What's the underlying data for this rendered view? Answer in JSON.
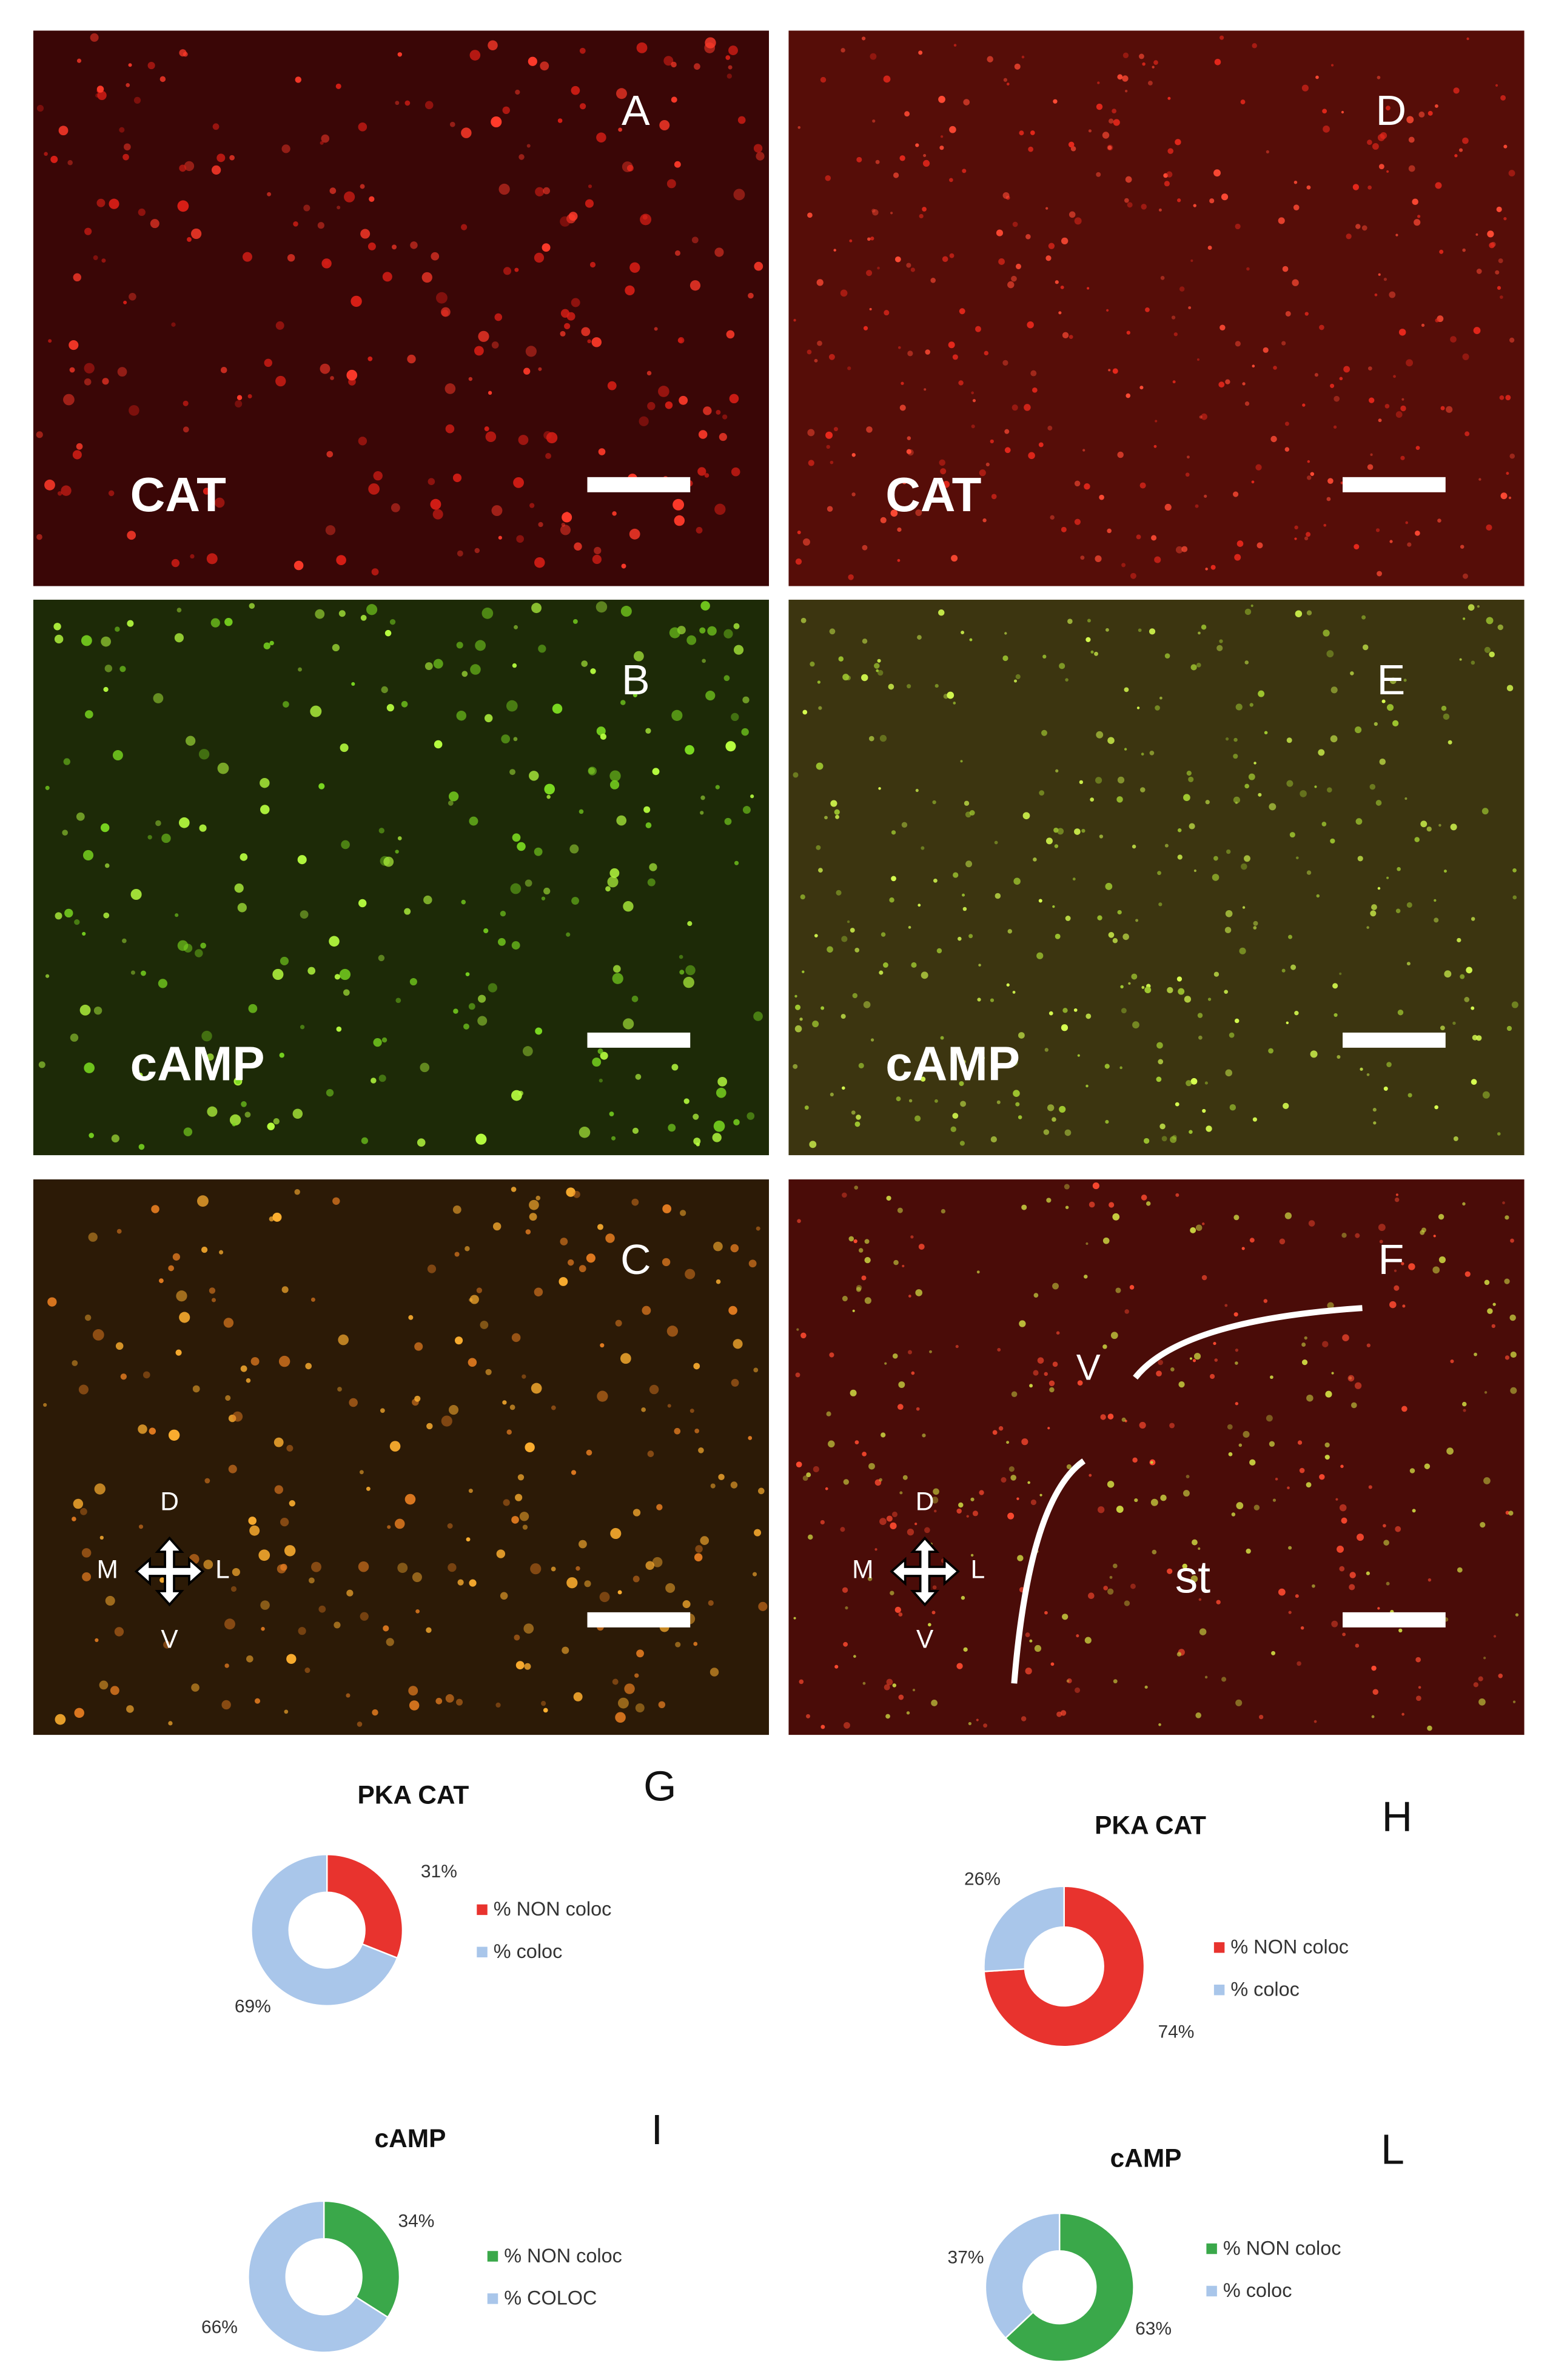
{
  "panels": [
    {
      "letter": "A",
      "label": "CAT"
    },
    {
      "letter": "D",
      "label": "CAT"
    },
    {
      "letter": "B",
      "label": "cAMP"
    },
    {
      "letter": "E",
      "label": "cAMP"
    },
    {
      "letter": "C",
      "orientation": {
        "top": "D",
        "left": "M",
        "right": "L",
        "bottom": "V"
      }
    },
    {
      "letter": "F",
      "orientation": {
        "top": "D",
        "left": "M",
        "right": "L",
        "bottom": "V"
      },
      "annotations": [
        "V",
        "st"
      ]
    }
  ],
  "chart_data": [
    {
      "type": "donut",
      "title": "PKA CAT",
      "letter": "G",
      "categories": [
        "% NON coloc",
        "% coloc"
      ],
      "values": [
        31,
        69
      ],
      "value_labels": [
        "31%",
        "69%"
      ],
      "colors": [
        "#e8332e",
        "#a9c6ea"
      ]
    },
    {
      "type": "donut",
      "title": "PKA CAT",
      "letter": "H",
      "categories": [
        "% NON coloc",
        "% coloc"
      ],
      "values": [
        74,
        26
      ],
      "value_labels": [
        "74%",
        "26%"
      ],
      "colors": [
        "#e8332e",
        "#a9c6ea"
      ]
    },
    {
      "type": "donut",
      "title": "cAMP",
      "letter": "I",
      "categories": [
        "% NON coloc",
        "% COLOC"
      ],
      "values": [
        34,
        66
      ],
      "value_labels": [
        "34%",
        "66%"
      ],
      "colors": [
        "#3aa84a",
        "#a9c6ea"
      ]
    },
    {
      "type": "donut",
      "title": "cAMP",
      "letter": "L",
      "categories": [
        "% NON coloc",
        "% coloc"
      ],
      "values": [
        63,
        37
      ],
      "value_labels": [
        "63%",
        "37%"
      ],
      "colors": [
        "#3aa84a",
        "#a9c6ea"
      ]
    }
  ]
}
